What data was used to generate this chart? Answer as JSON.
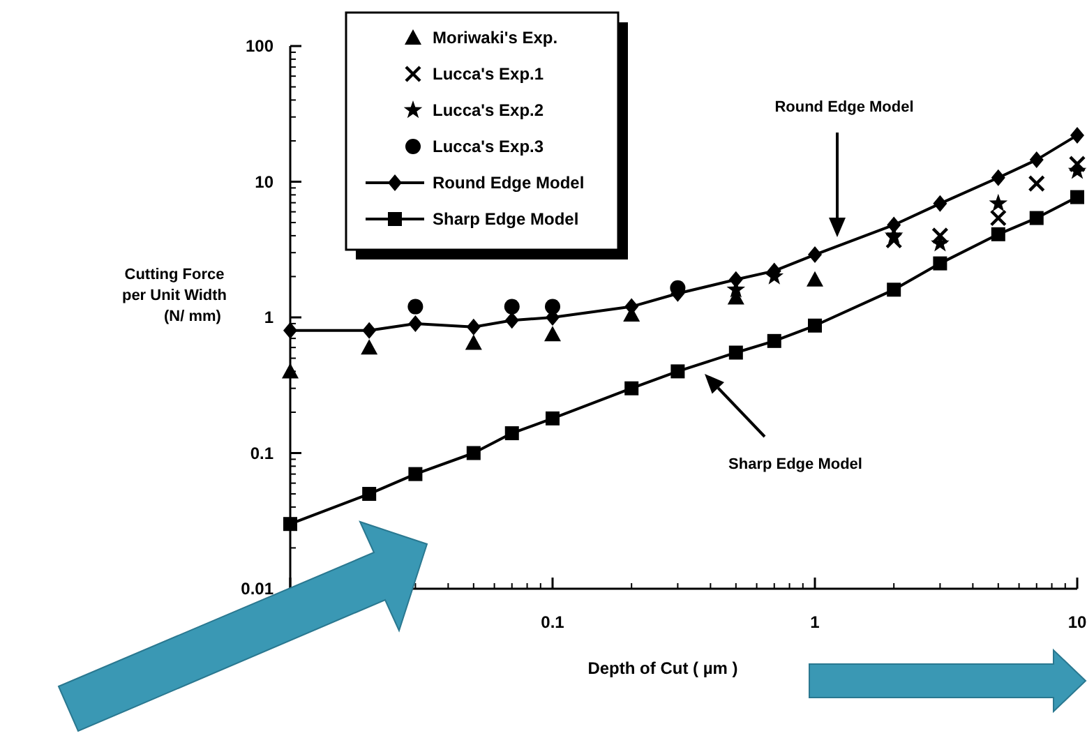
{
  "chart_data": {
    "type": "line",
    "xlabel": "Depth of Cut ( µm )",
    "ylabel": "Cutting Force per Unit Width (N/ mm)",
    "log": "xy",
    "xlim": [
      0.01,
      10
    ],
    "ylim": [
      0.01,
      100
    ],
    "xticks": [
      {
        "value": 0.01,
        "label": null
      },
      0.1,
      1,
      10
    ],
    "yticks": [
      0.01,
      0.1,
      1,
      10,
      100
    ],
    "grid": false,
    "legend": "top left",
    "series": [
      {
        "name": "Moriwaki's Exp.",
        "type": "scatter",
        "marker": "triangle",
        "color": "#000000",
        "x": [
          0.01,
          0.02,
          0.05,
          0.1,
          0.2,
          0.5,
          1
        ],
        "values": [
          0.4,
          0.6,
          0.65,
          0.75,
          1.05,
          1.4,
          1.9
        ]
      },
      {
        "name": "Lucca's Exp.1",
        "type": "scatter",
        "marker": "cross",
        "color": "#000000",
        "x": [
          2,
          3,
          5,
          7,
          10
        ],
        "values": [
          3.7,
          4,
          5.4,
          9.7,
          13.5
        ]
      },
      {
        "name": "Lucca's Exp.2",
        "type": "scatter",
        "marker": "star",
        "color": "#000000",
        "x": [
          0.5,
          0.7,
          2,
          3,
          5,
          10
        ],
        "values": [
          1.6,
          2,
          4,
          3.5,
          6.9,
          12
        ]
      },
      {
        "name": "Lucca's Exp.3",
        "type": "scatter",
        "marker": "circle",
        "color": "#000000",
        "x": [
          0.03,
          0.07,
          0.1,
          0.3
        ],
        "values": [
          1.2,
          1.2,
          1.2,
          1.65
        ]
      },
      {
        "name": "Round Edge Model",
        "type": "line",
        "marker": "diamond",
        "line_style": "solid",
        "color": "#000000",
        "x": [
          0.01,
          0.02,
          0.03,
          0.05,
          0.07,
          0.1,
          0.2,
          0.3,
          0.5,
          0.7,
          1,
          2,
          3,
          5,
          7,
          10
        ],
        "values": [
          0.8,
          0.8,
          0.9,
          0.85,
          0.95,
          1,
          1.2,
          1.5,
          1.9,
          2.2,
          2.9,
          4.8,
          6.9,
          10.7,
          14.5,
          22
        ]
      },
      {
        "name": "Sharp Edge Model",
        "type": "line",
        "marker": "square",
        "line_style": "solid",
        "color": "#000000",
        "x": [
          0.01,
          0.02,
          0.03,
          0.05,
          0.07,
          0.1,
          0.2,
          0.3,
          0.5,
          0.7,
          1,
          2,
          3,
          5,
          7,
          10
        ],
        "values": [
          0.03,
          0.05,
          0.07,
          0.1,
          0.14,
          0.18,
          0.3,
          0.4,
          0.55,
          0.67,
          0.87,
          1.6,
          2.5,
          4.1,
          5.4,
          7.7
        ]
      }
    ],
    "annotations": [
      "Round Edge Model",
      "Sharp Edge Model"
    ]
  }
}
